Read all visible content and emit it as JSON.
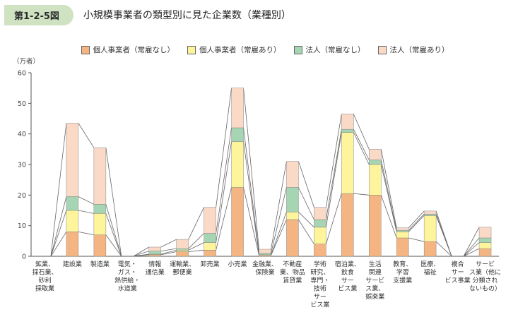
{
  "header": {
    "figure_no": "第1-2-5図",
    "title": "小規模事業者の類型別に見た企業数（業種別）"
  },
  "chart_data": {
    "type": "bar",
    "stacked": true,
    "unit_label": "（万者）",
    "ylim": [
      0,
      60
    ],
    "yticks": [
      0,
      10,
      20,
      30,
      40,
      50,
      60
    ],
    "categories": [
      [
        "鉱業、",
        "採石業、",
        "砂利",
        "採取業"
      ],
      [
        "建設業"
      ],
      [
        "製造業"
      ],
      [
        "電気・",
        "ガス・",
        "熱供給・",
        "水道業"
      ],
      [
        "情報",
        "通信業"
      ],
      [
        "運輸業、",
        "郵便業"
      ],
      [
        "卸売業"
      ],
      [
        "小売業"
      ],
      [
        "金融業、",
        "保険業"
      ],
      [
        "不動産",
        "業、物品",
        "賃貸業"
      ],
      [
        "学術",
        "研究、",
        "専門・",
        "技術",
        "サー",
        "ビス業"
      ],
      [
        "宿泊業、",
        "飲食",
        "サー",
        "ビス業"
      ],
      [
        "生活",
        "関連",
        "サービ",
        "ス業、",
        "娯楽業"
      ],
      [
        "教育、",
        "学習",
        "支援業"
      ],
      [
        "医療、",
        "福祉"
      ],
      [
        "複合",
        "サー",
        "ビス事業"
      ],
      [
        "サービ",
        "ス業（他に",
        "分類され",
        "ないもの）"
      ]
    ],
    "series": [
      {
        "name": "個人事業者（常雇なし）",
        "color": "#f5b582",
        "values": [
          0,
          8,
          7,
          0,
          0.5,
          1.5,
          2,
          22.5,
          0.3,
          12,
          4,
          20.5,
          20,
          6,
          4.8,
          0,
          2.5
        ]
      },
      {
        "name": "個人事業者（常雇あり）",
        "color": "#fdf49c",
        "values": [
          0,
          7,
          7,
          0,
          0.2,
          0.5,
          2.5,
          15,
          0.2,
          2.5,
          5.5,
          20,
          10,
          2,
          8.5,
          0,
          2
        ]
      },
      {
        "name": "法人（常雇なし）",
        "color": "#a6d5b4",
        "values": [
          0,
          4.5,
          3,
          0,
          1,
          0.5,
          3,
          4.5,
          0.5,
          8,
          2.5,
          1,
          1.5,
          0.5,
          0.5,
          0,
          1.5
        ]
      },
      {
        "name": "法人（常雇あり）",
        "color": "#fad9c6",
        "values": [
          0,
          24,
          18.5,
          0,
          1.3,
          3,
          8.5,
          13,
          1.3,
          8.5,
          4,
          5,
          3.5,
          0.8,
          1,
          0,
          3.5
        ]
      }
    ]
  }
}
